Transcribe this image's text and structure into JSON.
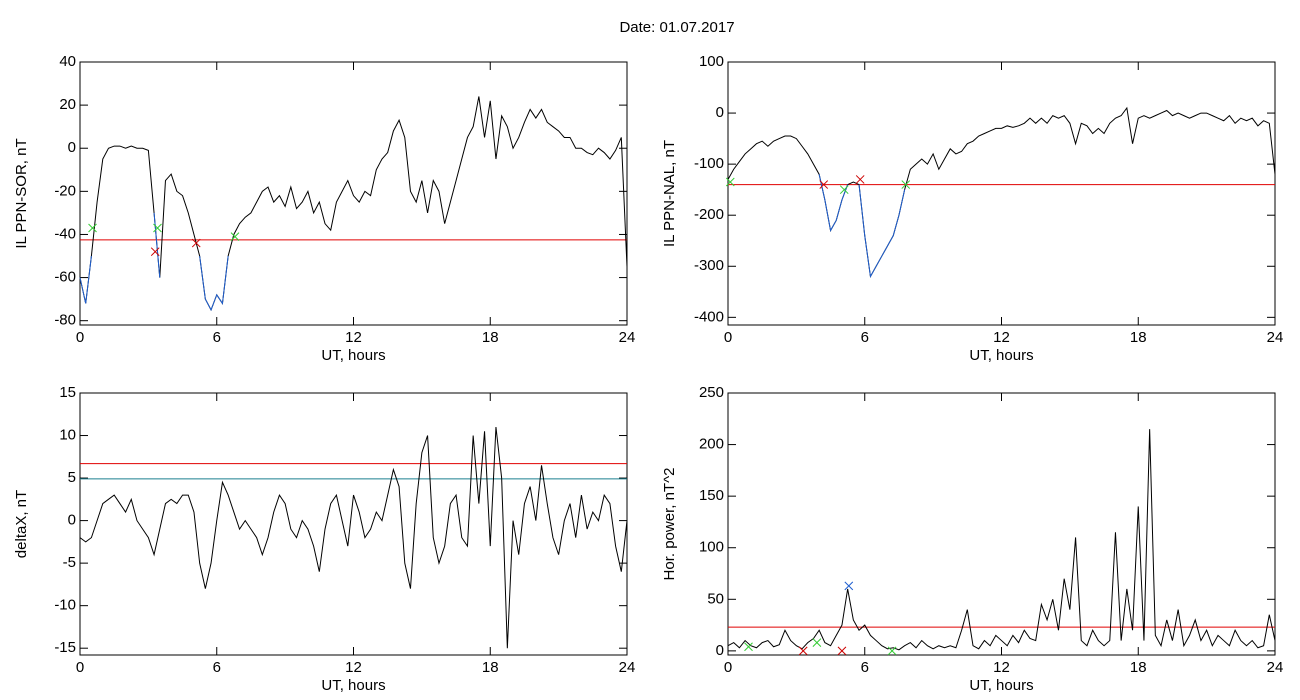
{
  "title": "Date:  01.07.2017",
  "chart_data": [
    {
      "type": "line",
      "ylabel": "IL PPN-SOR, nT",
      "xlabel": "UT, hours",
      "xlim": [
        0,
        24
      ],
      "ylim": [
        -82,
        40
      ],
      "xticks": [
        0,
        6,
        12,
        18,
        24
      ],
      "yticks": [
        40,
        20,
        0,
        -20,
        -40,
        -60,
        -80
      ],
      "series": [
        {
          "color": "#000000",
          "x": [
            0,
            0.25,
            0.5,
            0.75,
            1,
            1.25,
            1.5,
            1.75,
            2,
            2.25,
            2.5,
            2.75,
            3,
            3.25,
            3.5,
            3.75,
            4,
            4.25,
            4.5,
            4.75,
            5,
            5.25,
            5.5,
            5.75,
            6,
            6.25,
            6.5,
            6.75,
            7,
            7.25,
            7.5,
            7.75,
            8,
            8.25,
            8.5,
            8.75,
            9,
            9.25,
            9.5,
            9.75,
            10,
            10.25,
            10.5,
            10.75,
            11,
            11.25,
            11.5,
            11.75,
            12,
            12.25,
            12.5,
            12.75,
            13,
            13.25,
            13.5,
            13.75,
            14,
            14.25,
            14.5,
            14.75,
            15,
            15.25,
            15.5,
            15.75,
            16,
            16.25,
            16.5,
            16.75,
            17,
            17.25,
            17.5,
            17.75,
            18,
            18.25,
            18.5,
            18.75,
            19,
            19.25,
            19.5,
            19.75,
            20,
            20.25,
            20.5,
            20.75,
            21,
            21.25,
            21.5,
            21.75,
            22,
            22.25,
            22.5,
            22.75,
            23,
            23.25,
            23.5,
            23.75,
            24
          ],
          "values": [
            -60,
            -72,
            -50,
            -25,
            -5,
            0,
            1,
            1,
            0,
            1,
            0,
            0,
            -1,
            -30,
            -60,
            -15,
            -12,
            -20,
            -22,
            -30,
            -40,
            -50,
            -70,
            -75,
            -68,
            -72,
            -50,
            -40,
            -35,
            -32,
            -30,
            -25,
            -20,
            -18,
            -25,
            -22,
            -27,
            -18,
            -28,
            -25,
            -20,
            -30,
            -25,
            -35,
            -38,
            -25,
            -20,
            -15,
            -22,
            -25,
            -20,
            -22,
            -10,
            -5,
            -2,
            8,
            13,
            5,
            -20,
            -25,
            -15,
            -30,
            -15,
            -20,
            -35,
            -25,
            -15,
            -5,
            5,
            10,
            24,
            5,
            22,
            -5,
            15,
            10,
            0,
            5,
            12,
            18,
            14,
            18,
            12,
            10,
            8,
            5,
            5,
            0,
            0,
            -2,
            -3,
            0,
            -2,
            -5,
            -1,
            5,
            -55
          ]
        },
        {
          "color": "#1f5fd0",
          "x": [
            0,
            0.25,
            0.5,
            0.75,
            3.25,
            3.5,
            3.75,
            5.25,
            5.5,
            5.75,
            6,
            6.25,
            6.5
          ],
          "values": [
            -60,
            -72,
            -50,
            null,
            -30,
            -60,
            null,
            -50,
            -70,
            -75,
            -68,
            -72,
            -50
          ]
        }
      ],
      "hlines": [
        {
          "value": -42.5,
          "color": "#e00000"
        }
      ],
      "markers": [
        {
          "x": 0.55,
          "y": -37,
          "color": "#33cc33"
        },
        {
          "x": 3.4,
          "y": -37,
          "color": "#33cc33"
        },
        {
          "x": 6.8,
          "y": -41,
          "color": "#33cc33"
        },
        {
          "x": 3.3,
          "y": -48,
          "color": "#cc0000"
        },
        {
          "x": 5.1,
          "y": -44,
          "color": "#cc0000"
        }
      ]
    },
    {
      "type": "line",
      "ylabel": "IL PPN-NAL, nT",
      "xlabel": "UT, hours",
      "xlim": [
        0,
        24
      ],
      "ylim": [
        -415,
        100
      ],
      "xticks": [
        0,
        6,
        12,
        18,
        24
      ],
      "yticks": [
        100,
        0,
        -100,
        -200,
        -300,
        -400
      ],
      "series": [
        {
          "color": "#000000",
          "x": [
            0,
            0.25,
            0.5,
            0.75,
            1,
            1.25,
            1.5,
            1.75,
            2,
            2.25,
            2.5,
            2.75,
            3,
            3.25,
            3.5,
            3.75,
            4,
            4.25,
            4.5,
            4.75,
            5,
            5.25,
            5.5,
            5.75,
            6,
            6.25,
            6.5,
            6.75,
            7,
            7.25,
            7.5,
            7.75,
            8,
            8.25,
            8.5,
            8.75,
            9,
            9.25,
            9.5,
            9.75,
            10,
            10.25,
            10.5,
            10.75,
            11,
            11.25,
            11.5,
            11.75,
            12,
            12.25,
            12.5,
            12.75,
            13,
            13.25,
            13.5,
            13.75,
            14,
            14.25,
            14.5,
            14.75,
            15,
            15.25,
            15.5,
            15.75,
            16,
            16.25,
            16.5,
            16.75,
            17,
            17.25,
            17.5,
            17.75,
            18,
            18.25,
            18.5,
            18.75,
            19,
            19.25,
            19.5,
            19.75,
            20,
            20.25,
            20.5,
            20.75,
            21,
            21.25,
            21.5,
            21.75,
            22,
            22.25,
            22.5,
            22.75,
            23,
            23.25,
            23.5,
            23.75,
            24
          ],
          "values": [
            -130,
            -110,
            -95,
            -80,
            -70,
            -60,
            -55,
            -65,
            -55,
            -50,
            -45,
            -45,
            -50,
            -65,
            -80,
            -100,
            -120,
            -170,
            -230,
            -210,
            -170,
            -140,
            -135,
            -140,
            -240,
            -320,
            -300,
            -280,
            -260,
            -240,
            -200,
            -150,
            -110,
            -100,
            -90,
            -100,
            -80,
            -110,
            -90,
            -70,
            -80,
            -75,
            -60,
            -55,
            -45,
            -40,
            -35,
            -30,
            -30,
            -25,
            -28,
            -25,
            -20,
            -10,
            -20,
            -10,
            -20,
            -5,
            -10,
            -5,
            -20,
            -60,
            -20,
            -25,
            -40,
            -30,
            -40,
            -20,
            -10,
            -5,
            10,
            -60,
            -10,
            -5,
            -10,
            -5,
            0,
            5,
            -5,
            0,
            -5,
            -10,
            -5,
            0,
            0,
            -5,
            -10,
            -15,
            -5,
            -20,
            -10,
            -15,
            -10,
            -25,
            -15,
            -20,
            -120
          ]
        },
        {
          "color": "#1f5fd0",
          "x": [
            4,
            4.25,
            4.5,
            4.75,
            5,
            5.25,
            5.5,
            5.75,
            6,
            6.25,
            6.5,
            6.75,
            7,
            7.25,
            7.5,
            7.75
          ],
          "values": [
            -120,
            -170,
            -230,
            -210,
            -170,
            -140,
            null,
            -140,
            -240,
            -320,
            -300,
            -280,
            -260,
            -240,
            -200,
            -150
          ]
        }
      ],
      "hlines": [
        {
          "value": -140,
          "color": "#e00000"
        }
      ],
      "markers": [
        {
          "x": 0.1,
          "y": -135,
          "color": "#33cc33"
        },
        {
          "x": 5.1,
          "y": -150,
          "color": "#33cc33"
        },
        {
          "x": 7.8,
          "y": -140,
          "color": "#33cc33"
        },
        {
          "x": 4.2,
          "y": -140,
          "color": "#cc0000"
        },
        {
          "x": 5.8,
          "y": -130,
          "color": "#cc0000"
        }
      ]
    },
    {
      "type": "line",
      "ylabel": "deltaX, nT",
      "xlabel": "UT, hours",
      "xlim": [
        0,
        24
      ],
      "ylim": [
        -15.8,
        15
      ],
      "xticks": [
        0,
        6,
        12,
        18,
        24
      ],
      "yticks": [
        15,
        10,
        5,
        0,
        -5,
        -10,
        -15
      ],
      "series": [
        {
          "color": "#000000",
          "x": [
            0,
            0.25,
            0.5,
            0.75,
            1,
            1.25,
            1.5,
            1.75,
            2,
            2.25,
            2.5,
            2.75,
            3,
            3.25,
            3.5,
            3.75,
            4,
            4.25,
            4.5,
            4.75,
            5,
            5.25,
            5.5,
            5.75,
            6,
            6.25,
            6.5,
            6.75,
            7,
            7.25,
            7.5,
            7.75,
            8,
            8.25,
            8.5,
            8.75,
            9,
            9.25,
            9.5,
            9.75,
            10,
            10.25,
            10.5,
            10.75,
            11,
            11.25,
            11.5,
            11.75,
            12,
            12.25,
            12.5,
            12.75,
            13,
            13.25,
            13.5,
            13.75,
            14,
            14.25,
            14.5,
            14.75,
            15,
            15.25,
            15.5,
            15.75,
            16,
            16.25,
            16.5,
            16.75,
            17,
            17.25,
            17.5,
            17.75,
            18,
            18.25,
            18.5,
            18.75,
            19,
            19.25,
            19.5,
            19.75,
            20,
            20.25,
            20.5,
            20.75,
            21,
            21.25,
            21.5,
            21.75,
            22,
            22.25,
            22.5,
            22.75,
            23,
            23.25,
            23.5,
            23.75,
            24
          ],
          "values": [
            -2,
            -2.5,
            -2,
            0,
            2,
            2.5,
            3,
            2,
            1,
            2.5,
            0,
            -1,
            -2,
            -4,
            -1,
            2,
            2.5,
            2,
            3,
            3,
            1,
            -5,
            -8,
            -5,
            0,
            4.5,
            3,
            1,
            -1,
            0,
            -1,
            -2,
            -4,
            -2,
            1,
            3,
            2,
            -1,
            -2,
            0,
            -1,
            -3,
            -6,
            -1,
            2,
            3,
            0,
            -3,
            3,
            1,
            -2,
            -1,
            1,
            0,
            3,
            6,
            4,
            -5,
            -8,
            2,
            8,
            10,
            -2,
            -5,
            -3,
            2,
            3,
            -2,
            -3,
            10,
            2,
            10.5,
            -3,
            11,
            5,
            -15,
            0,
            -4,
            2,
            4,
            0,
            6.5,
            2,
            -2,
            -4,
            0,
            2,
            -2,
            3,
            -1,
            1,
            0,
            3,
            2,
            -3,
            -6,
            0
          ]
        }
      ],
      "hlines": [
        {
          "value": 6.7,
          "color": "#e00000"
        },
        {
          "value": 4.9,
          "color": "#1a7f8f"
        }
      ],
      "markers": []
    },
    {
      "type": "line",
      "ylabel": "Hor. power, nT^2",
      "xlabel": "UT, hours",
      "xlim": [
        0,
        24
      ],
      "ylim": [
        -4,
        250
      ],
      "xticks": [
        0,
        6,
        12,
        18,
        24
      ],
      "yticks": [
        250,
        200,
        150,
        100,
        50,
        0
      ],
      "series": [
        {
          "color": "#000000",
          "x": [
            0,
            0.25,
            0.5,
            0.75,
            1,
            1.25,
            1.5,
            1.75,
            2,
            2.25,
            2.5,
            2.75,
            3,
            3.25,
            3.5,
            3.75,
            4,
            4.25,
            4.5,
            4.75,
            5,
            5.25,
            5.5,
            5.75,
            6,
            6.25,
            6.5,
            6.75,
            7,
            7.25,
            7.5,
            7.75,
            8,
            8.25,
            8.5,
            8.75,
            9,
            9.25,
            9.5,
            9.75,
            10,
            10.25,
            10.5,
            10.75,
            11,
            11.25,
            11.5,
            11.75,
            12,
            12.25,
            12.5,
            12.75,
            13,
            13.25,
            13.5,
            13.75,
            14,
            14.25,
            14.5,
            14.75,
            15,
            15.25,
            15.5,
            15.75,
            16,
            16.25,
            16.5,
            16.75,
            17,
            17.25,
            17.5,
            17.75,
            18,
            18.25,
            18.5,
            18.75,
            19,
            19.25,
            19.5,
            19.75,
            20,
            20.25,
            20.5,
            20.75,
            21,
            21.25,
            21.5,
            21.75,
            22,
            22.25,
            22.5,
            22.75,
            23,
            23.25,
            23.5,
            23.75,
            24
          ],
          "values": [
            5,
            8,
            3,
            10,
            5,
            3,
            8,
            10,
            4,
            6,
            20,
            10,
            5,
            2,
            8,
            12,
            20,
            8,
            5,
            15,
            25,
            60,
            30,
            20,
            25,
            15,
            10,
            5,
            2,
            3,
            1,
            5,
            8,
            3,
            10,
            5,
            2,
            5,
            3,
            5,
            3,
            20,
            40,
            5,
            2,
            10,
            5,
            15,
            10,
            5,
            15,
            8,
            20,
            12,
            10,
            45,
            30,
            50,
            20,
            70,
            40,
            110,
            10,
            5,
            20,
            10,
            5,
            10,
            115,
            10,
            60,
            20,
            140,
            10,
            215,
            15,
            5,
            30,
            10,
            40,
            5,
            15,
            30,
            10,
            20,
            5,
            15,
            10,
            5,
            20,
            10,
            5,
            10,
            3,
            5,
            35,
            10
          ]
        }
      ],
      "hlines": [
        {
          "value": 23,
          "color": "#e00000"
        }
      ],
      "markers": [
        {
          "x": 5.3,
          "y": 63,
          "color": "#1f5fd0"
        },
        {
          "x": 3.3,
          "y": 0,
          "color": "#cc0000"
        },
        {
          "x": 5,
          "y": 0,
          "color": "#cc0000"
        },
        {
          "x": 0.9,
          "y": 4,
          "color": "#33cc33"
        },
        {
          "x": 3.9,
          "y": 8,
          "color": "#33cc33"
        },
        {
          "x": 7.2,
          "y": 0,
          "color": "#33cc33"
        }
      ]
    }
  ]
}
